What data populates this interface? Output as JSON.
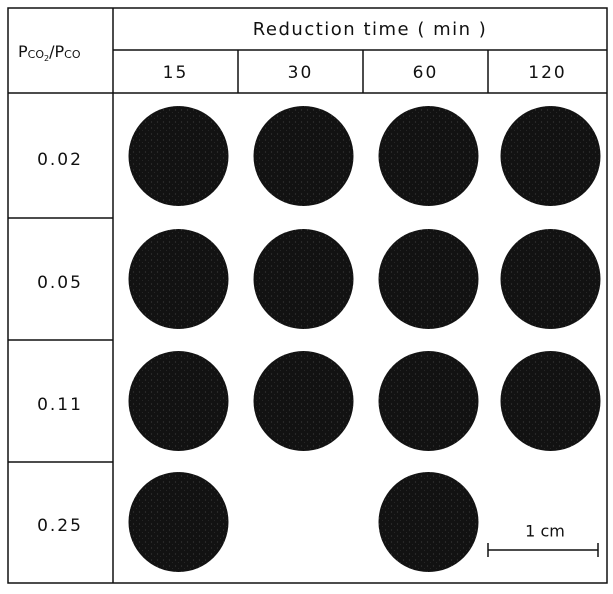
{
  "header": {
    "ratio_label": {
      "p1": "P",
      "sub1": "CO",
      "sub1b": "2",
      "slash": "/P",
      "sub2": "CO"
    },
    "title": "Reduction time ( min )",
    "columns": [
      "15",
      "30",
      "60",
      "120"
    ]
  },
  "rows": [
    {
      "label": "0.02",
      "samples": [
        true,
        true,
        true,
        true
      ]
    },
    {
      "label": "0.05",
      "samples": [
        true,
        true,
        true,
        true
      ]
    },
    {
      "label": "0.11",
      "samples": [
        true,
        true,
        true,
        true
      ]
    },
    {
      "label": "0.25",
      "samples": [
        true,
        false,
        true,
        false
      ]
    }
  ],
  "scale_bar": "1 cm"
}
